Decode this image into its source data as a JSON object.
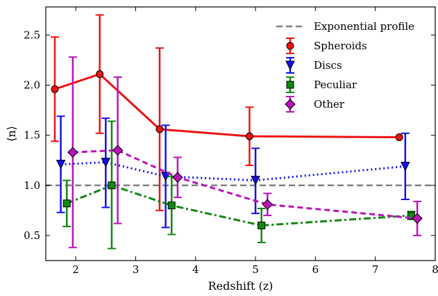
{
  "chart_data": {
    "type": "line",
    "title": "",
    "xlabel": "Redshift (z)",
    "ylabel": "⟨n⟩",
    "xlim": [
      1.5,
      8.0
    ],
    "ylim": [
      0.25,
      2.78
    ],
    "xticks": [
      2,
      3,
      4,
      5,
      6,
      7,
      8
    ],
    "yticks": [
      0.5,
      1.0,
      1.5,
      2.0,
      2.5
    ],
    "xtick_labels": [
      "2",
      "3",
      "4",
      "5",
      "6",
      "7",
      "8"
    ],
    "ytick_labels": [
      "0.5",
      "1.0",
      "1.5",
      "2.0",
      "2.5"
    ],
    "grid": false,
    "legend_position": "top-right",
    "reference_line": {
      "name": "Exponential profile",
      "y": 1.0,
      "color": "#808080",
      "style": "dashed"
    },
    "series": [
      {
        "name": "Spheroids",
        "color": "#ee1111",
        "marker": "circle",
        "linestyle": "solid",
        "x": [
          1.65,
          2.4,
          3.4,
          4.9,
          7.4
        ],
        "y": [
          1.96,
          2.11,
          1.56,
          1.49,
          1.48
        ],
        "yerr_low": [
          1.44,
          1.52,
          0.75,
          1.2,
          1.48
        ],
        "yerr_high": [
          2.48,
          2.7,
          2.37,
          1.78,
          1.48
        ]
      },
      {
        "name": "Discs",
        "color": "#1111ee",
        "marker": "triangle-down",
        "linestyle": "dotted",
        "x": [
          1.75,
          2.5,
          3.5,
          5.0,
          7.5
        ],
        "y": [
          1.21,
          1.23,
          1.09,
          1.05,
          1.19
        ],
        "yerr_low": [
          0.73,
          0.78,
          0.58,
          0.72,
          0.86
        ],
        "yerr_high": [
          1.69,
          1.67,
          1.6,
          1.37,
          1.52
        ]
      },
      {
        "name": "Peculiar",
        "color": "#118811",
        "marker": "square",
        "linestyle": "dashdot",
        "x": [
          1.85,
          2.6,
          3.6,
          5.1,
          7.6
        ],
        "y": [
          0.82,
          1.0,
          0.8,
          0.6,
          0.7
        ],
        "yerr_low": [
          0.59,
          0.37,
          0.51,
          0.43,
          0.66
        ],
        "yerr_high": [
          1.05,
          1.64,
          1.09,
          0.77,
          0.74
        ]
      },
      {
        "name": "Other",
        "color": "#bb11bb",
        "marker": "diamond",
        "linestyle": "dashed",
        "x": [
          1.95,
          2.7,
          3.7,
          5.2,
          7.7
        ],
        "y": [
          1.33,
          1.35,
          1.08,
          0.81,
          0.67
        ],
        "yerr_low": [
          0.38,
          0.62,
          0.88,
          0.7,
          0.5
        ],
        "yerr_high": [
          2.28,
          2.08,
          1.28,
          0.92,
          0.84
        ]
      }
    ]
  }
}
